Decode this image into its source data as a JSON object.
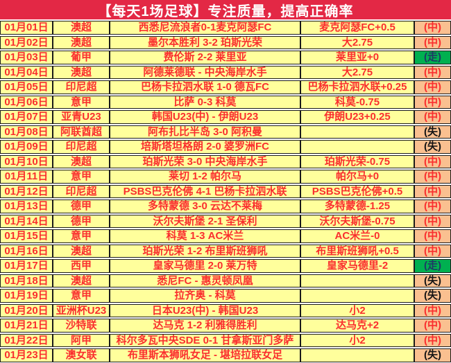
{
  "header": {
    "title": "【每天1场足球】专注质量，提高正确率"
  },
  "colors": {
    "header_bg": "#E32845",
    "cell_yellow": "#FFFF9C",
    "result_orange": "#FAC090",
    "push_green": "#00B050",
    "text_red": "#FA2E2E",
    "push_blue": "#1F3864",
    "grid": "#1a1a1a"
  },
  "legend": {
    "hit": "(中)",
    "push": "(走)",
    "miss": "(失)"
  },
  "table": {
    "rows": [
      {
        "date": "01月01日",
        "league": "澳超",
        "match": "西悉尼流浪者0-1麦克阿瑟FC",
        "pick": "麦克阿瑟FC+0.5",
        "result": "(中)",
        "type": "mid"
      },
      {
        "date": "01月02日",
        "league": "澳超",
        "match": "墨尔本胜利 3-2 珀斯光荣",
        "pick": "大2.75",
        "result": "(中)",
        "type": "mid"
      },
      {
        "date": "01月03日",
        "league": "葡甲",
        "match": "费伦斯 2-2 莱里亚",
        "pick": "莱里亚+0",
        "result": "(走)",
        "type": "zou"
      },
      {
        "date": "01月04日",
        "league": "澳超",
        "match": "阿德莱德联 - 中央海岸水手",
        "pick": "大2.75",
        "result": "(中)",
        "type": "mid"
      },
      {
        "date": "01月05日",
        "league": "印尼超",
        "match": "巴杨卡拉泗水联 1-0 德瓦FC",
        "pick": "巴杨卡拉泗水联+0.25",
        "result": "(中)",
        "type": "mid"
      },
      {
        "date": "01月06日",
        "league": "意甲",
        "match": "比萨 0-3 科莫",
        "pick": "科莫-0.75",
        "result": "(中)",
        "type": "mid"
      },
      {
        "date": "01月07日",
        "league": "亚青U23",
        "match": "韩国U23(中) - 伊朗U23",
        "pick": "伊朗U23+0.25",
        "result": "(中)",
        "type": "mid"
      },
      {
        "date": "01月08日",
        "league": "阿联酋超",
        "match": "阿布扎比半岛 3-0 阿积曼",
        "pick": "",
        "result": "(失)",
        "type": "shi"
      },
      {
        "date": "01月09日",
        "league": "印尼超",
        "match": "培斯塔坦格朗 2-0 婆罗洲FC",
        "pick": "",
        "result": "(失)",
        "type": "shi"
      },
      {
        "date": "01月10日",
        "league": "澳超",
        "match": "珀斯光荣 3-0 中央海岸水手",
        "pick": "珀斯光荣-0.75",
        "result": "(中)",
        "type": "mid"
      },
      {
        "date": "01月11日",
        "league": "意甲",
        "match": "莱切 1-2 帕尔马",
        "pick": "帕尔马+0",
        "result": "(中)",
        "type": "mid"
      },
      {
        "date": "01月12日",
        "league": "印尼超",
        "match": "PSBS巴克伦佛 4-1 巴杨卡拉泗水联",
        "pick": "PSBS巴克伦佛+0.5",
        "result": "(中)",
        "type": "mid"
      },
      {
        "date": "01月13日",
        "league": "德甲",
        "match": "多特蒙德 3-0 云达不莱梅",
        "pick": "多特蒙德-1.25",
        "result": "(中)",
        "type": "mid"
      },
      {
        "date": "01月14日",
        "league": "德甲",
        "match": "沃尔夫斯堡 2-1 圣保利",
        "pick": "沃尔夫斯堡-0.75",
        "result": "(中)",
        "type": "mid"
      },
      {
        "date": "01月15日",
        "league": "意甲",
        "match": "科莫 1-3 AC米兰",
        "pick": "AC米兰-0",
        "result": "(中)",
        "type": "mid"
      },
      {
        "date": "01月16日",
        "league": "澳超",
        "match": "珀斯光荣 1-2 布里斯班狮吼",
        "pick": "布里斯班狮吼+0.5",
        "result": "(中)",
        "type": "mid"
      },
      {
        "date": "01月17日",
        "league": "西甲",
        "match": "皇家马德里 2-0 莱万特",
        "pick": "皇家马德里-2",
        "result": "(走)",
        "type": "zou"
      },
      {
        "date": "01月18日",
        "league": "澳超",
        "match": "悉尼FC - 惠灵顿凤凰",
        "pick": "",
        "result": "(失)",
        "type": "shi"
      },
      {
        "date": "01月19日",
        "league": "意甲",
        "match": "拉齐奥 - 科莫",
        "pick": "",
        "result": "(失)",
        "type": "shi"
      },
      {
        "date": "01月20日",
        "league": "亚洲杯U23",
        "match": "日本U23(中) - 韩国U23",
        "pick": "小2",
        "result": "(中)",
        "type": "mid"
      },
      {
        "date": "01月21日",
        "league": "沙特联",
        "match": "达马克 1-2 利雅得胜利",
        "pick": "达马克+2",
        "result": "(中)",
        "type": "mid"
      },
      {
        "date": "01月22日",
        "league": "阿甲",
        "match": "科尔多瓦中央SDE 0-1 甘拿斯亚门多萨",
        "pick": "小2",
        "result": "(中)",
        "type": "mid"
      },
      {
        "date": "01月23日",
        "league": "澳女联",
        "match": "布里斯本狮吼女足 - 堪培拉联女足",
        "pick": "",
        "result": "(失)",
        "type": "shi"
      }
    ]
  }
}
